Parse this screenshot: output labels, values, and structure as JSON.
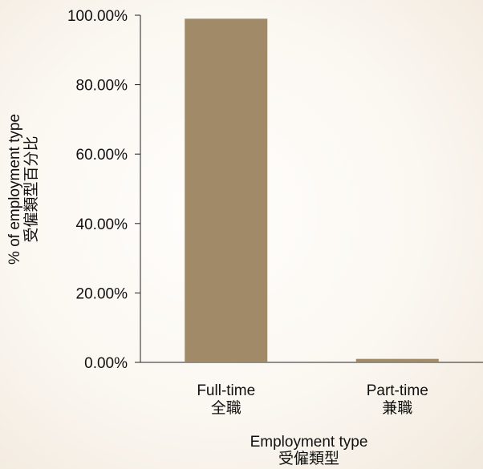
{
  "chart_data": {
    "type": "bar",
    "categories": [
      "Full-time",
      "Part-time"
    ],
    "categories_zh": [
      "全職",
      "兼職"
    ],
    "values": [
      99,
      1
    ],
    "xlabel": "Employment type",
    "xlabel_zh": "受僱類型",
    "ylabel": "% of employment type",
    "ylabel_zh": "受僱類型百分比",
    "ylim": [
      0,
      100
    ],
    "yticks": [
      "0.00%",
      "20.00%",
      "40.00%",
      "60.00%",
      "80.00%",
      "100.00%"
    ],
    "bar_color": "#a08a67",
    "axis_color": "#222222",
    "grid": false
  }
}
